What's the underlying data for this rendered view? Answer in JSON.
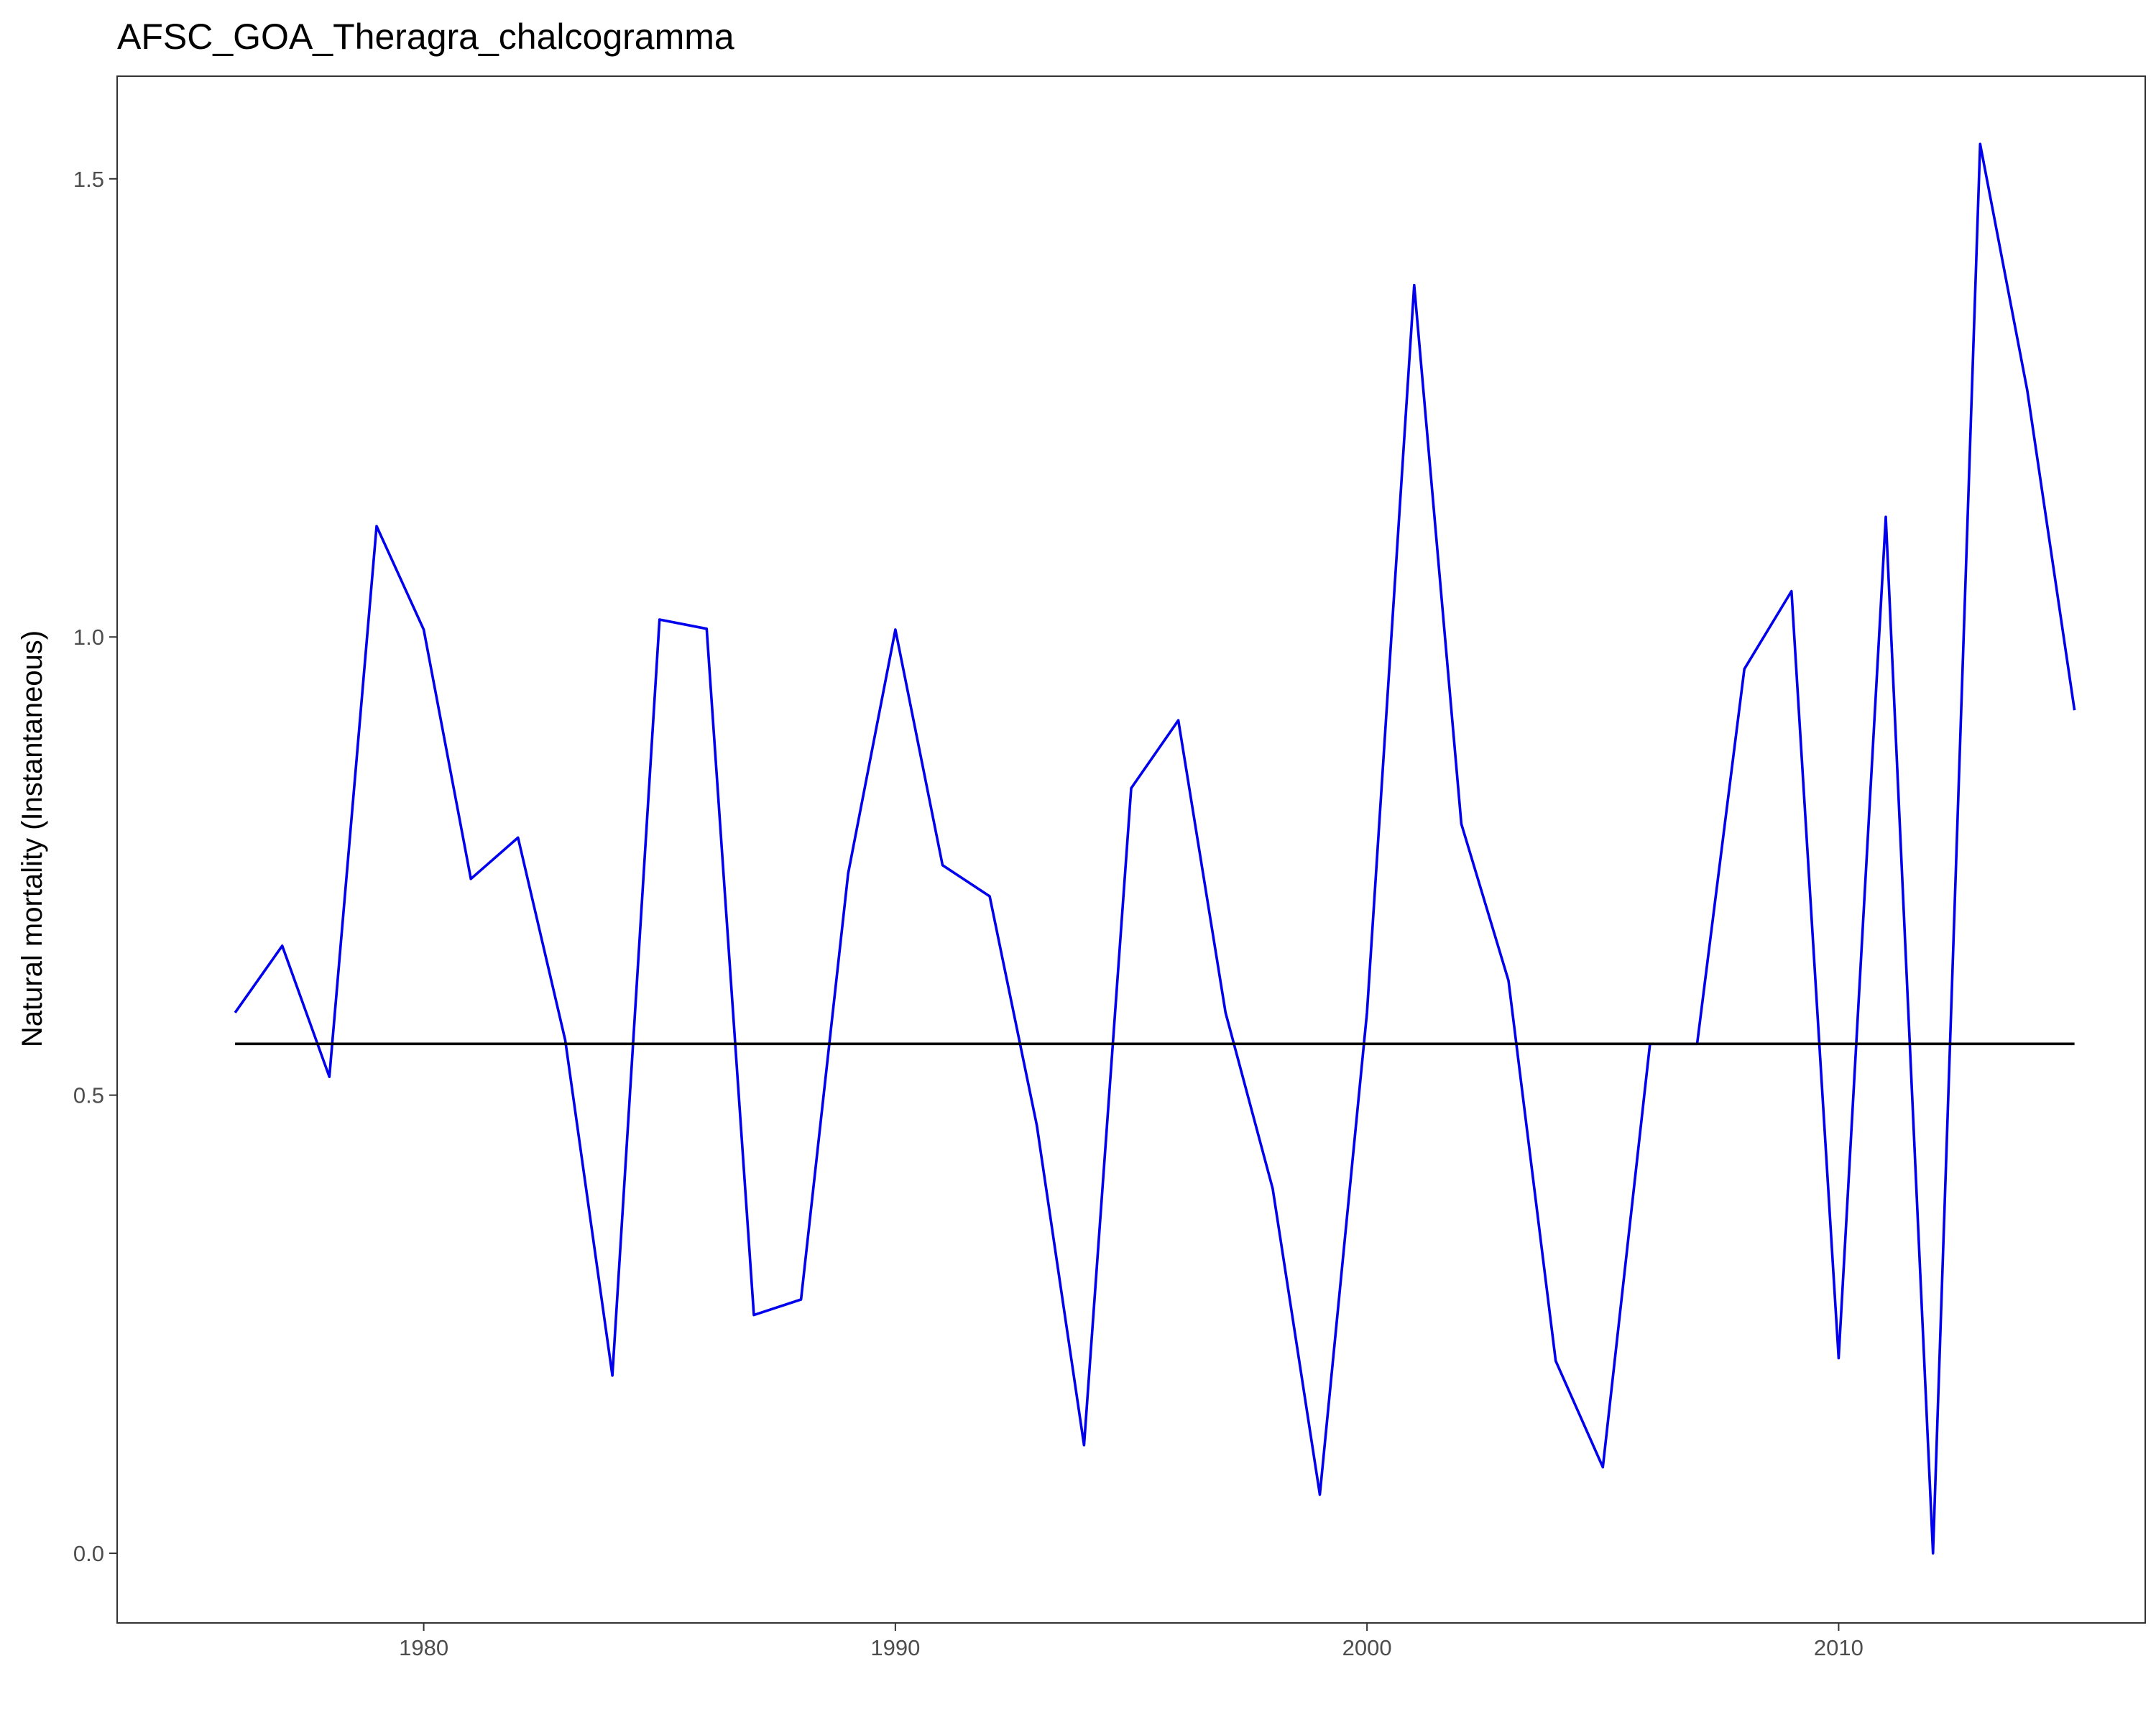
{
  "chart_data": {
    "type": "line",
    "title": "AFSC_GOA_Theragra_chalcogramma",
    "xlabel": "",
    "ylabel": "Natural mortality (Instantaneous)",
    "xlim": [
      1973.5,
      2016.5
    ],
    "ylim": [
      -0.076,
      1.612
    ],
    "x_ticks": [
      1980,
      1990,
      2000,
      2010
    ],
    "y_ticks": [
      0.0,
      0.5,
      1.0,
      1.5
    ],
    "x_tick_labels": [
      "1980",
      "1990",
      "2000",
      "2010"
    ],
    "y_tick_labels": [
      "0.0",
      "0.5",
      "1.0",
      "1.5"
    ],
    "grid": false,
    "series": [
      {
        "color": "#0000ee",
        "x": [
          1976,
          1977,
          1978,
          1979,
          1980,
          1981,
          1982,
          1983,
          1984,
          1985,
          1986,
          1987,
          1988,
          1989,
          1990,
          1991,
          1992,
          1993,
          1994,
          1995,
          1996,
          1997,
          1998,
          1999,
          2000,
          2001,
          2002,
          2003,
          2004,
          2005,
          2006,
          2007,
          2008,
          2009,
          2010,
          2011,
          2012,
          2013,
          2014,
          2015
        ],
        "values": [
          0.59,
          0.663,
          0.52,
          1.121,
          1.008,
          0.736,
          0.781,
          0.56,
          0.194,
          1.019,
          1.009,
          0.26,
          0.277,
          0.742,
          1.008,
          0.751,
          0.717,
          0.467,
          0.118,
          0.835,
          0.909,
          0.59,
          0.398,
          0.064,
          0.59,
          1.384,
          0.796,
          0.625,
          0.21,
          0.094,
          0.556,
          0.556,
          0.965,
          1.05,
          0.213,
          1.131,
          0.0,
          1.538,
          1.269,
          0.92
        ]
      },
      {
        "color": "#000000",
        "x": [
          1976,
          2015
        ],
        "values": [
          0.556,
          0.556
        ]
      }
    ]
  }
}
